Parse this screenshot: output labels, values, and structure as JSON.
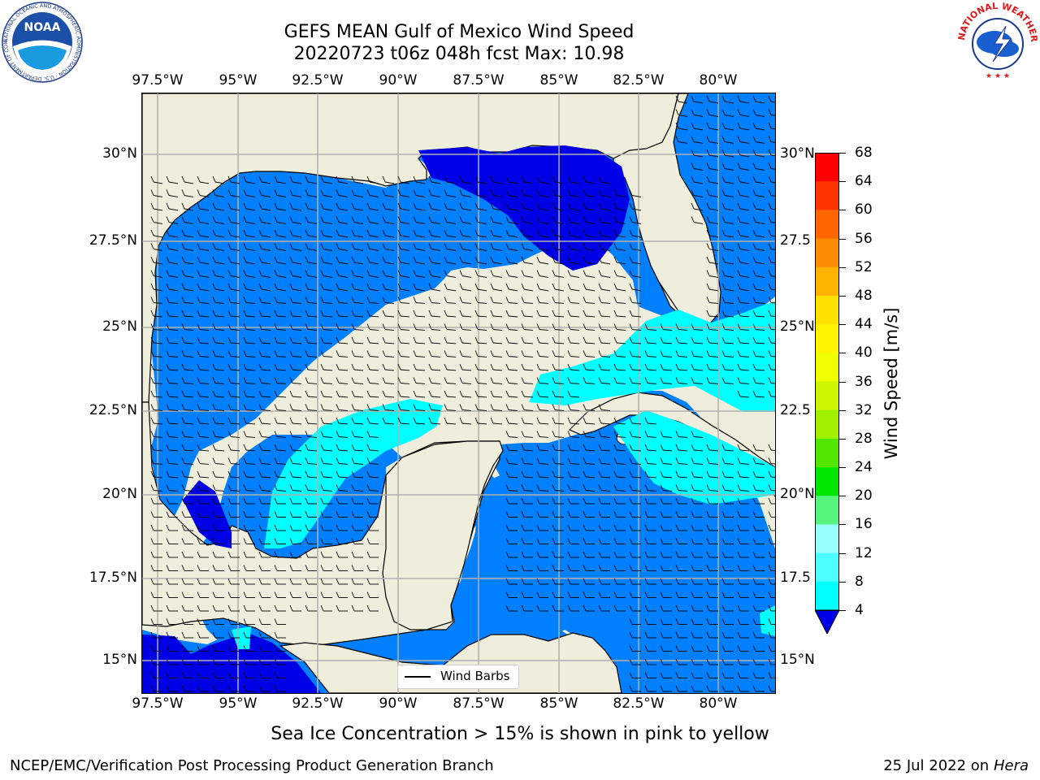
{
  "title": {
    "line1": "GEFS MEAN Gulf of Mexico Wind Speed",
    "line2": "20220723 t06z 048h fcst   Max: 10.98"
  },
  "map": {
    "lon_labels": [
      "97.5°W",
      "95°W",
      "92.5°W",
      "90°W",
      "87.5°W",
      "85°W",
      "82.5°W",
      "80°W"
    ],
    "lat_labels_left": [
      "30°N",
      "27.5°N",
      "25°N",
      "22.5°N",
      "20°N",
      "17.5°N",
      "15°N"
    ],
    "lat_labels_right": [
      "30°N",
      "27.5",
      "25°N",
      "22.5",
      "20°N",
      "17.5",
      "15°N"
    ],
    "lon_range": [
      -98,
      -78.2
    ],
    "lat_range": [
      14.0,
      31.8
    ],
    "legend_label": "Wind Barbs",
    "colors": {
      "land": "#efeedc",
      "ocean_4_8": "#0080ff",
      "ocean_lt4": "#0000e6",
      "ocean_8_12": "#00ffff",
      "ocean_12_16": "#4cffff"
    }
  },
  "colorbar": {
    "label": "Wind Speed [m/s]",
    "levels": [
      "68",
      "64",
      "60",
      "56",
      "52",
      "48",
      "44",
      "40",
      "36",
      "32",
      "28",
      "24",
      "20",
      "16",
      "12",
      "8",
      "4"
    ],
    "colors": [
      "#ff0000",
      "#ff3300",
      "#ff6600",
      "#ff8c00",
      "#ffb300",
      "#ffe100",
      "#fff500",
      "#f0ff00",
      "#cdf500",
      "#a0f000",
      "#50e600",
      "#00e600",
      "#55f57d",
      "#99ffff",
      "#4cffff",
      "#00ffff",
      "#0080ff"
    ],
    "under_color": "#0000e6"
  },
  "footer": {
    "note": "Sea Ice Concentration > 15% is shown in pink to yellow",
    "left": "NCEP/EMC/Verification Post Processing Product Generation Branch",
    "right_date": "25 Jul 2022 on ",
    "right_host": "Hera"
  },
  "logos": {
    "noaa_text": "NOAA",
    "noaa_ring": "NATIONAL OCEANIC AND ATMOSPHERIC ADMINISTRATION · U.S. DEPARTMENT OF COMMERCE ·",
    "nws_ring": "NATIONAL WEATHER SERVICE"
  }
}
